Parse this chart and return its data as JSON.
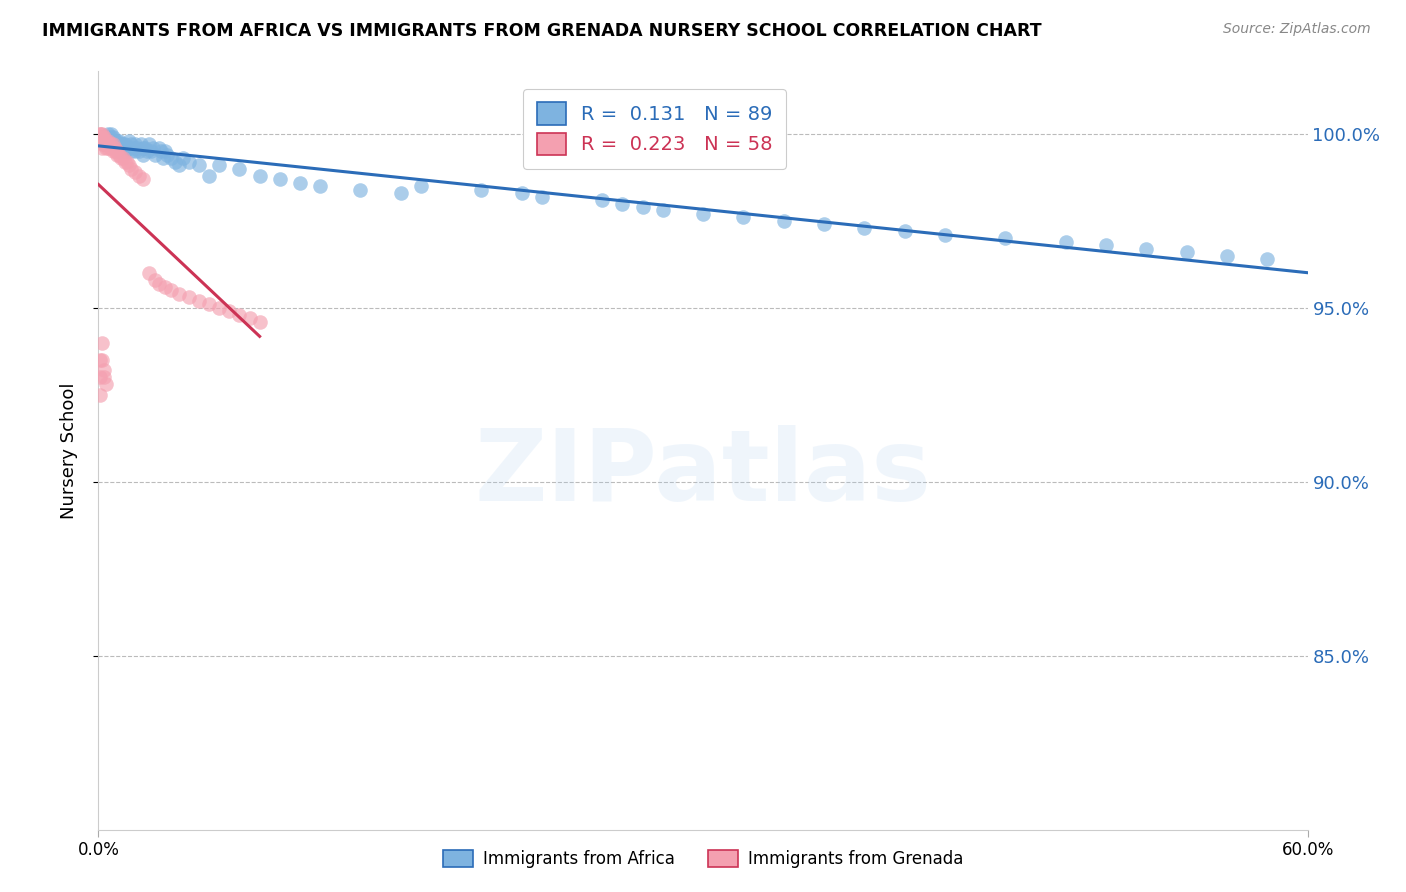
{
  "title": "IMMIGRANTS FROM AFRICA VS IMMIGRANTS FROM GRENADA NURSERY SCHOOL CORRELATION CHART",
  "source": "Source: ZipAtlas.com",
  "ylabel": "Nursery School",
  "legend_label_blue": "Immigrants from Africa",
  "legend_label_pink": "Immigrants from Grenada",
  "R_blue": 0.131,
  "N_blue": 89,
  "R_pink": 0.223,
  "N_pink": 58,
  "xlim": [
    0.0,
    0.6
  ],
  "ylim": [
    0.8,
    1.018
  ],
  "ytick_values": [
    0.85,
    0.9,
    0.95,
    1.0
  ],
  "color_blue": "#7EB3E0",
  "color_pink": "#F4A0B0",
  "color_blue_line": "#2B6CB8",
  "color_pink_line": "#CC3355",
  "watermark": "ZIPatlas",
  "blue_scatter_x": [
    0.002,
    0.003,
    0.003,
    0.004,
    0.004,
    0.005,
    0.005,
    0.005,
    0.006,
    0.006,
    0.006,
    0.007,
    0.007,
    0.007,
    0.008,
    0.008,
    0.008,
    0.009,
    0.009,
    0.01,
    0.01,
    0.01,
    0.011,
    0.011,
    0.012,
    0.012,
    0.013,
    0.013,
    0.014,
    0.015,
    0.015,
    0.016,
    0.016,
    0.017,
    0.018,
    0.018,
    0.019,
    0.02,
    0.021,
    0.022,
    0.022,
    0.023,
    0.024,
    0.025,
    0.026,
    0.027,
    0.028,
    0.03,
    0.031,
    0.032,
    0.033,
    0.034,
    0.036,
    0.038,
    0.04,
    0.042,
    0.045,
    0.05,
    0.055,
    0.06,
    0.07,
    0.08,
    0.09,
    0.1,
    0.11,
    0.13,
    0.15,
    0.16,
    0.19,
    0.21,
    0.22,
    0.25,
    0.26,
    0.27,
    0.28,
    0.3,
    0.32,
    0.34,
    0.36,
    0.38,
    0.4,
    0.42,
    0.45,
    0.48,
    0.5,
    0.52,
    0.54,
    0.56,
    0.58
  ],
  "blue_scatter_y": [
    0.999,
    0.999,
    0.997,
    0.999,
    0.997,
    1.0,
    0.999,
    0.997,
    1.0,
    0.999,
    0.997,
    0.999,
    0.998,
    0.997,
    0.998,
    0.997,
    0.996,
    0.998,
    0.997,
    0.998,
    0.997,
    0.995,
    0.997,
    0.996,
    0.997,
    0.995,
    0.997,
    0.995,
    0.996,
    0.998,
    0.996,
    0.997,
    0.995,
    0.996,
    0.997,
    0.995,
    0.996,
    0.995,
    0.997,
    0.996,
    0.994,
    0.996,
    0.995,
    0.997,
    0.995,
    0.996,
    0.994,
    0.996,
    0.995,
    0.993,
    0.995,
    0.994,
    0.993,
    0.992,
    0.991,
    0.993,
    0.992,
    0.991,
    0.988,
    0.991,
    0.99,
    0.988,
    0.987,
    0.986,
    0.985,
    0.984,
    0.983,
    0.985,
    0.984,
    0.983,
    0.982,
    0.981,
    0.98,
    0.979,
    0.978,
    0.977,
    0.976,
    0.975,
    0.974,
    0.973,
    0.972,
    0.971,
    0.97,
    0.969,
    0.968,
    0.967,
    0.966,
    0.965,
    0.964
  ],
  "pink_scatter_x": [
    0.001,
    0.001,
    0.001,
    0.001,
    0.002,
    0.002,
    0.002,
    0.002,
    0.002,
    0.003,
    0.003,
    0.003,
    0.004,
    0.004,
    0.004,
    0.005,
    0.005,
    0.005,
    0.006,
    0.006,
    0.007,
    0.007,
    0.008,
    0.008,
    0.009,
    0.009,
    0.01,
    0.011,
    0.012,
    0.013,
    0.014,
    0.015,
    0.016,
    0.018,
    0.02,
    0.022,
    0.025,
    0.028,
    0.03,
    0.033,
    0.036,
    0.04,
    0.045,
    0.05,
    0.055,
    0.06,
    0.065,
    0.07,
    0.075,
    0.08,
    0.001,
    0.001,
    0.001,
    0.002,
    0.002,
    0.003,
    0.003,
    0.004
  ],
  "pink_scatter_y": [
    1.0,
    1.0,
    0.999,
    0.998,
    1.0,
    0.999,
    0.998,
    0.997,
    0.996,
    0.999,
    0.998,
    0.997,
    0.998,
    0.997,
    0.996,
    0.998,
    0.997,
    0.996,
    0.997,
    0.996,
    0.997,
    0.995,
    0.996,
    0.995,
    0.995,
    0.994,
    0.994,
    0.993,
    0.993,
    0.992,
    0.992,
    0.991,
    0.99,
    0.989,
    0.988,
    0.987,
    0.96,
    0.958,
    0.957,
    0.956,
    0.955,
    0.954,
    0.953,
    0.952,
    0.951,
    0.95,
    0.949,
    0.948,
    0.947,
    0.946,
    0.935,
    0.93,
    0.925,
    0.94,
    0.935,
    0.932,
    0.93,
    0.928
  ]
}
